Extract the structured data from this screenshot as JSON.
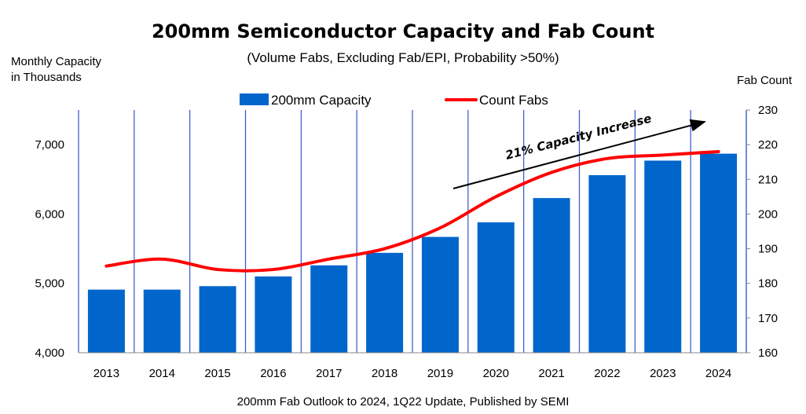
{
  "title": "200mm Semiconductor Capacity and Fab Count",
  "subtitle": "(Volume Fabs, Excluding Fab/EPI, Probability >50%)",
  "footer": "200mm Fab Outlook to 2024, 1Q22 Update, Published by SEMI",
  "colors": {
    "bar": "#0066CC",
    "line": "#FF0000",
    "grid": "#3355CC",
    "axis": "#888888"
  },
  "chart_data": {
    "type": "bar",
    "categories": [
      "2013",
      "2014",
      "2015",
      "2016",
      "2017",
      "2018",
      "2019",
      "2020",
      "2021",
      "2022",
      "2023",
      "2024"
    ],
    "series": [
      {
        "name": "200mm Capacity",
        "type": "bar",
        "axis": "left",
        "values": [
          4910,
          4910,
          4960,
          5100,
          5260,
          5440,
          5670,
          5880,
          6230,
          6560,
          6770,
          6870
        ]
      },
      {
        "name": "Count Fabs",
        "type": "line",
        "axis": "right",
        "values": [
          185,
          187,
          184,
          184,
          187,
          190,
          196,
          205,
          212,
          216,
          217,
          218
        ]
      }
    ],
    "ylabel": "Monthly Capacity in Thousands",
    "ylabel_lines": [
      "Monthly Capacity",
      "in Thousands"
    ],
    "y2label": "Fab Count",
    "ylim": [
      4000,
      7500
    ],
    "yticks": [
      4000,
      5000,
      6000,
      7000
    ],
    "ytick_labels": [
      "4,000",
      "5,000",
      "6,000",
      "7,000"
    ],
    "y2lim": [
      160,
      230
    ],
    "y2ticks": [
      160,
      170,
      180,
      190,
      200,
      210,
      220,
      230
    ],
    "legend": {
      "position": "top",
      "entries": [
        "200mm Capacity",
        "Count Fabs"
      ]
    },
    "annotation": {
      "text": "21% Capacity Increase"
    },
    "grid": "vertical"
  }
}
